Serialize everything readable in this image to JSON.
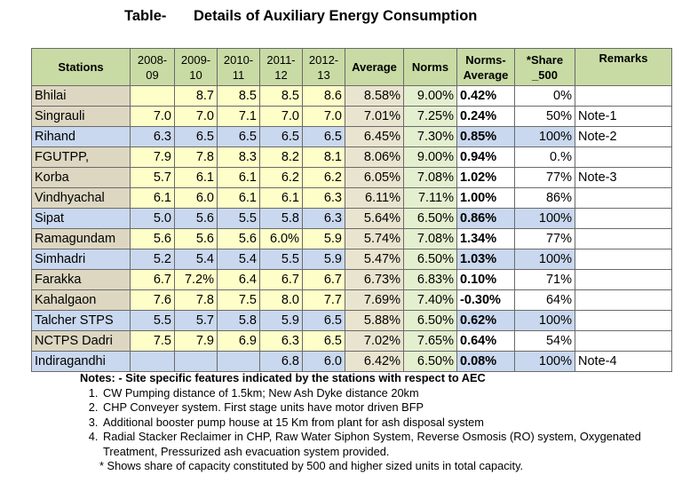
{
  "title": {
    "label": "Table-",
    "text": "Details of Auxiliary Energy Consumption"
  },
  "table": {
    "headers": [
      [
        "Stations"
      ],
      [
        "2008-",
        "09"
      ],
      [
        "2009-",
        "10"
      ],
      [
        "2010-",
        "11"
      ],
      [
        "2011-",
        "12"
      ],
      [
        "2012-",
        "13"
      ],
      [
        "Average"
      ],
      [
        "Norms"
      ],
      [
        "Norms-",
        "Average"
      ],
      [
        "*Share",
        "_500"
      ],
      [
        "Remarks"
      ]
    ],
    "rows": [
      {
        "station": "Bhilai",
        "y08": "",
        "y09": "8.7",
        "y10": "8.5",
        "y11": "8.5",
        "y12": "8.6",
        "avg": "8.58%",
        "norms": "9.00%",
        "diff": "0.42%",
        "share": "0%",
        "remark": ""
      },
      {
        "station": "Singrauli",
        "y08": "7.0",
        "y09": "7.0",
        "y10": "7.1",
        "y11": "7.0",
        "y12": "7.0",
        "avg": "7.01%",
        "norms": "7.25%",
        "diff": "0.24%",
        "share": "50%",
        "remark": "Note-1"
      },
      {
        "station": "Rihand",
        "y08": "6.3",
        "y09": "6.5",
        "y10": "6.5",
        "y11": "6.5",
        "y12": "6.5",
        "avg": "6.45%",
        "norms": "7.30%",
        "diff": "0.85%",
        "share": "100%",
        "remark": "Note-2"
      },
      {
        "station": "FGUTPP,",
        "y08": "7.9",
        "y09": "7.8",
        "y10": "8.3",
        "y11": "8.2",
        "y12": "8.1",
        "avg": "8.06%",
        "norms": "9.00%",
        "diff": "0.94%",
        "share": "0.%",
        "remark": ""
      },
      {
        "station": "Korba",
        "y08": "5.7",
        "y09": "6.1",
        "y10": "6.1",
        "y11": "6.2",
        "y12": "6.2",
        "avg": "6.05%",
        "norms": "7.08%",
        "diff": "1.02%",
        "share": "77%",
        "remark": "Note-3"
      },
      {
        "station": "Vindhyachal",
        "y08": "6.1",
        "y09": "6.0",
        "y10": "6.1",
        "y11": "6.1",
        "y12": "6.3",
        "avg": "6.11%",
        "norms": "7.11%",
        "diff": "1.00%",
        "share": "86%",
        "remark": ""
      },
      {
        "station": "Sipat",
        "y08": "5.0",
        "y09": "5.6",
        "y10": "5.5",
        "y11": "5.8",
        "y12": "6.3",
        "avg": "5.64%",
        "norms": "6.50%",
        "diff": "0.86%",
        "share": "100%",
        "remark": ""
      },
      {
        "station": "Ramagundam",
        "y08": "5.6",
        "y09": "5.6",
        "y10": "5.6",
        "y11": "6.0%",
        "y12": "5.9",
        "avg": "5.74%",
        "norms": "7.08%",
        "diff": "1.34%",
        "share": "77%",
        "remark": ""
      },
      {
        "station": "Simhadri",
        "y08": "5.2",
        "y09": "5.4",
        "y10": "5.4",
        "y11": "5.5",
        "y12": "5.9",
        "avg": "5.47%",
        "norms": "6.50%",
        "diff": "1.03%",
        "share": "100%",
        "remark": ""
      },
      {
        "station": "Farakka",
        "y08": "6.7",
        "y09": "7.2%",
        "y10": "6.4",
        "y11": "6.7",
        "y12": "6.7",
        "avg": "6.73%",
        "norms": "6.83%",
        "diff": "0.10%",
        "share": "71%",
        "remark": ""
      },
      {
        "station": "Kahalgaon",
        "y08": "7.6",
        "y09": "7.8",
        "y10": "7.5",
        "y11": "8.0",
        "y12": "7.7",
        "avg": "7.69%",
        "norms": "7.40%",
        "diff": "-0.30%",
        "share": "64%",
        "remark": ""
      },
      {
        "station": "Talcher STPS",
        "y08": "5.5",
        "y09": "5.7",
        "y10": "5.8",
        "y11": "5.9",
        "y12": "6.5",
        "avg": "5.88%",
        "norms": "6.50%",
        "diff": "0.62%",
        "share": "100%",
        "remark": ""
      },
      {
        "station": "NCTPS Dadri",
        "y08": "7.5",
        "y09": "7.9",
        "y10": "6.9",
        "y11": "6.3",
        "y12": "6.5",
        "avg": "7.02%",
        "norms": "7.65%",
        "diff": "0.64%",
        "share": "54%",
        "remark": ""
      },
      {
        "station": "Indiragandhi",
        "y08": "",
        "y09": "",
        "y10": "",
        "y11": "6.8",
        "y12": "6.0",
        "avg": "6.42%",
        "norms": "6.50%",
        "diff": "0.08%",
        "share": "100%",
        "remark": "Note-4"
      }
    ]
  },
  "notes": {
    "heading": "Notes: - Site specific features indicated by the stations with respect to AEC",
    "items": [
      "CW Pumping distance of 1.5km; New Ash Dyke distance 20km",
      "CHP Conveyer system. First stage units have motor driven BFP",
      "Additional booster pump house at 15 Km from plant for ash disposal system",
      "Radial Stacker Reclaimer in CHP, Raw Water Siphon System, Reverse Osmosis (RO) system,  Oxygenated Treatment, Pressurized ash evacuation system provided."
    ],
    "footnote": "*  Shows share of capacity constituted by 500 and higher sized units in total capacity."
  },
  "colors": {
    "header_bg": "#c9dba4",
    "tan_row": "#ddd7c2",
    "blue_row": "#c9d8ee",
    "year_yellow": "#fefec8",
    "average_bg": "#e9e4cf",
    "norms_bg": "#e4efd0"
  }
}
